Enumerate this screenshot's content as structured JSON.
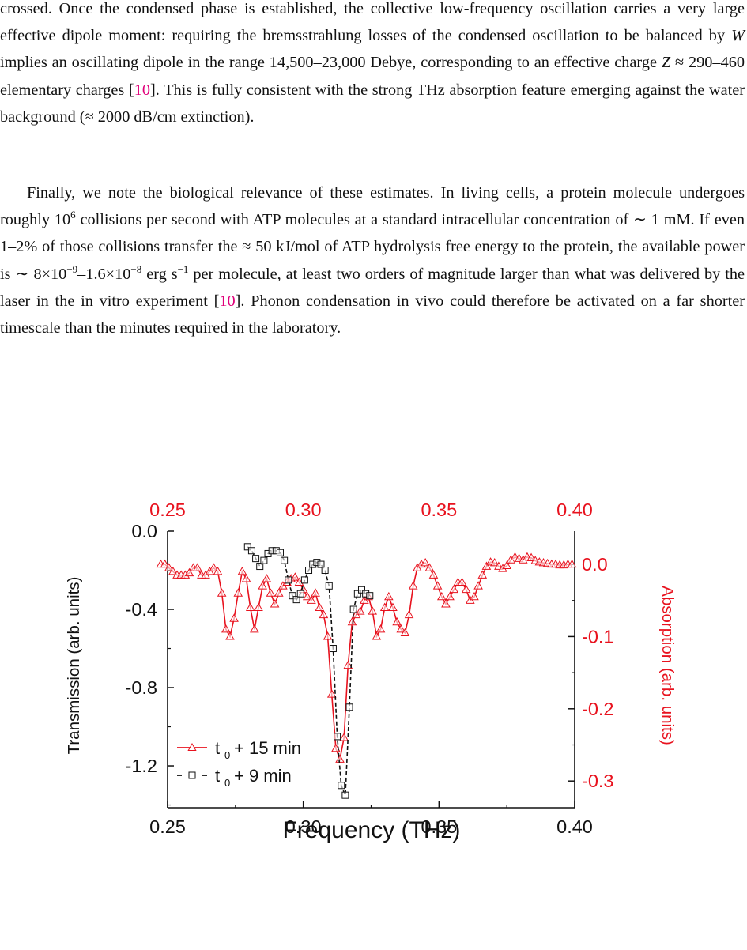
{
  "text": {
    "p1": {
      "a": "crossed. Once the condensed phase is established, the collective low-frequency oscillation carries a very large effective dipole moment: requiring the bremsstrahlung losses of the condensed oscillation to be balanced by ",
      "W": "W",
      "b": " implies an oscillating dipole in the range 14,500–23,000 Debye, corresponding to an effective charge ",
      "Z": "Z",
      "c": " ≈ 290–460 elementary charges [",
      "ref1": "10",
      "d": "]. This is fully consistent with the strong THz absorption feature emerging against the water background (≈ 2000 dB/cm extinction)."
    },
    "p2": {
      "a": "Finally, we note the biological relevance of these estimates. In living cells, a protein molecule undergoes roughly 10",
      "sup1": "6",
      "b": " collisions per second with ATP molecules at a standard intracellular concentration of ∼ 1 mM. If even 1–2% of those collisions transfer the ≈ 50 kJ/mol of ATP hydrolysis free energy to the protein, the available power is ∼ 8×10",
      "sup2": "−9",
      "c": "–1.6×10",
      "sup3": "−8",
      "d": " erg s",
      "sup4": "−1",
      "e": " per molecule, at least two orders of magnitude larger than what was delivered by the laser in the in vitro experiment [",
      "ref2": "10",
      "f": "]. Phonon condensation in vivo could therefore be activated on a far shorter timescale than the minutes required in the laboratory."
    }
  },
  "colors": {
    "red": "#e8121e",
    "black": "#111111",
    "ref": "#e0007a"
  },
  "chart_data": {
    "type": "line",
    "xlabel": "Frequency (THz)",
    "ylabel_left": "Transmission (arb. units)",
    "ylabel_right": "Absorption (arb. units)",
    "xlim": [
      0.25,
      0.4
    ],
    "ylim_left": [
      -1.45,
      0.0
    ],
    "ylim_right": [
      -0.33,
      0.04
    ],
    "x_ticks": [
      "0.25",
      "0.30",
      "0.35",
      "0.40"
    ],
    "x_ticks_top": [
      "0.25",
      "0.30",
      "0.35",
      "0.40"
    ],
    "y_ticks_left": [
      "0.0",
      "-0.4",
      "-0.8",
      "-1.2"
    ],
    "y_ticks_right": [
      "0.0",
      "-0.1",
      "-0.2",
      "-0.3"
    ],
    "legend_position": "bottom-left",
    "series": [
      {
        "name": "t0 + 15 min",
        "legend_main": "t",
        "legend_sub": "0",
        "legend_rest": "+ 15 min",
        "color": "red",
        "marker": "triangle",
        "x": [
          0.2475,
          0.249,
          0.2505,
          0.252,
          0.2535,
          0.255,
          0.2565,
          0.258,
          0.2595,
          0.261,
          0.2625,
          0.264,
          0.2655,
          0.267,
          0.2685,
          0.27,
          0.2715,
          0.273,
          0.2745,
          0.276,
          0.2775,
          0.279,
          0.2805,
          0.282,
          0.2835,
          0.285,
          0.2865,
          0.288,
          0.2895,
          0.291,
          0.2925,
          0.294,
          0.2955,
          0.297,
          0.2985,
          0.3,
          0.3015,
          0.303,
          0.3045,
          0.306,
          0.3075,
          0.309,
          0.3105,
          0.312,
          0.3135,
          0.315,
          0.3165,
          0.318,
          0.3195,
          0.321,
          0.3225,
          0.324,
          0.3255,
          0.327,
          0.3285,
          0.33,
          0.3315,
          0.333,
          0.3345,
          0.336,
          0.3375,
          0.339,
          0.3405,
          0.342,
          0.3435,
          0.345,
          0.3465,
          0.348,
          0.3495,
          0.351,
          0.3525,
          0.354,
          0.3555,
          0.357,
          0.3585,
          0.36,
          0.3615,
          0.363,
          0.3645,
          0.366,
          0.3675,
          0.369,
          0.3705,
          0.372,
          0.3735,
          0.375,
          0.3765,
          0.378,
          0.3795,
          0.381,
          0.3825,
          0.384,
          0.3855,
          0.387,
          0.3885,
          0.39,
          0.3915,
          0.393,
          0.3945,
          0.396,
          0.3975,
          0.399
        ],
        "y": [
          0.0,
          0.0,
          -0.005,
          -0.01,
          -0.015,
          -0.015,
          -0.015,
          -0.012,
          -0.005,
          -0.005,
          -0.015,
          -0.015,
          -0.01,
          -0.005,
          -0.01,
          -0.04,
          -0.09,
          -0.1,
          -0.075,
          -0.04,
          -0.01,
          -0.02,
          -0.06,
          -0.09,
          -0.06,
          -0.03,
          -0.02,
          -0.04,
          -0.055,
          -0.04,
          -0.03,
          -0.025,
          -0.02,
          -0.018,
          -0.025,
          -0.035,
          -0.045,
          -0.05,
          -0.04,
          -0.06,
          -0.07,
          -0.1,
          -0.18,
          -0.255,
          -0.27,
          -0.24,
          -0.14,
          -0.08,
          -0.07,
          -0.065,
          -0.05,
          -0.045,
          -0.065,
          -0.1,
          -0.09,
          -0.06,
          -0.045,
          -0.06,
          -0.08,
          -0.09,
          -0.095,
          -0.07,
          -0.03,
          -0.005,
          0.0,
          0.002,
          -0.005,
          -0.015,
          -0.03,
          -0.045,
          -0.055,
          -0.045,
          -0.035,
          -0.025,
          -0.025,
          -0.035,
          -0.05,
          -0.045,
          -0.03,
          -0.015,
          -0.003,
          0.003,
          0.002,
          -0.003,
          -0.006,
          -0.002,
          0.006,
          0.01,
          0.008,
          0.006,
          0.01,
          0.009,
          0.005,
          0.003,
          0.002,
          0.001,
          0.0,
          0.0,
          -0.001,
          -0.001,
          0.0,
          0.0
        ]
      },
      {
        "name": "t0 + 9 min",
        "legend_main": "t",
        "legend_sub": "0",
        "legend_rest": "+  9 min",
        "color": "black",
        "marker": "square",
        "x": [
          0.2795,
          0.281,
          0.2825,
          0.284,
          0.2855,
          0.287,
          0.2885,
          0.29,
          0.2915,
          0.293,
          0.2945,
          0.296,
          0.2975,
          0.299,
          0.3005,
          0.302,
          0.3035,
          0.305,
          0.3065,
          0.308,
          0.3095,
          0.311,
          0.3125,
          0.314,
          0.3155,
          0.317,
          0.3185,
          0.32,
          0.3215,
          0.323,
          0.3245
        ],
        "y": [
          -0.08,
          -0.1,
          -0.14,
          -0.18,
          -0.15,
          -0.115,
          -0.1,
          -0.1,
          -0.11,
          -0.15,
          -0.25,
          -0.33,
          -0.35,
          -0.32,
          -0.25,
          -0.2,
          -0.17,
          -0.16,
          -0.17,
          -0.2,
          -0.28,
          -0.6,
          -1.05,
          -1.3,
          -1.35,
          -0.9,
          -0.4,
          -0.32,
          -0.3,
          -0.32,
          -0.33
        ]
      }
    ]
  }
}
